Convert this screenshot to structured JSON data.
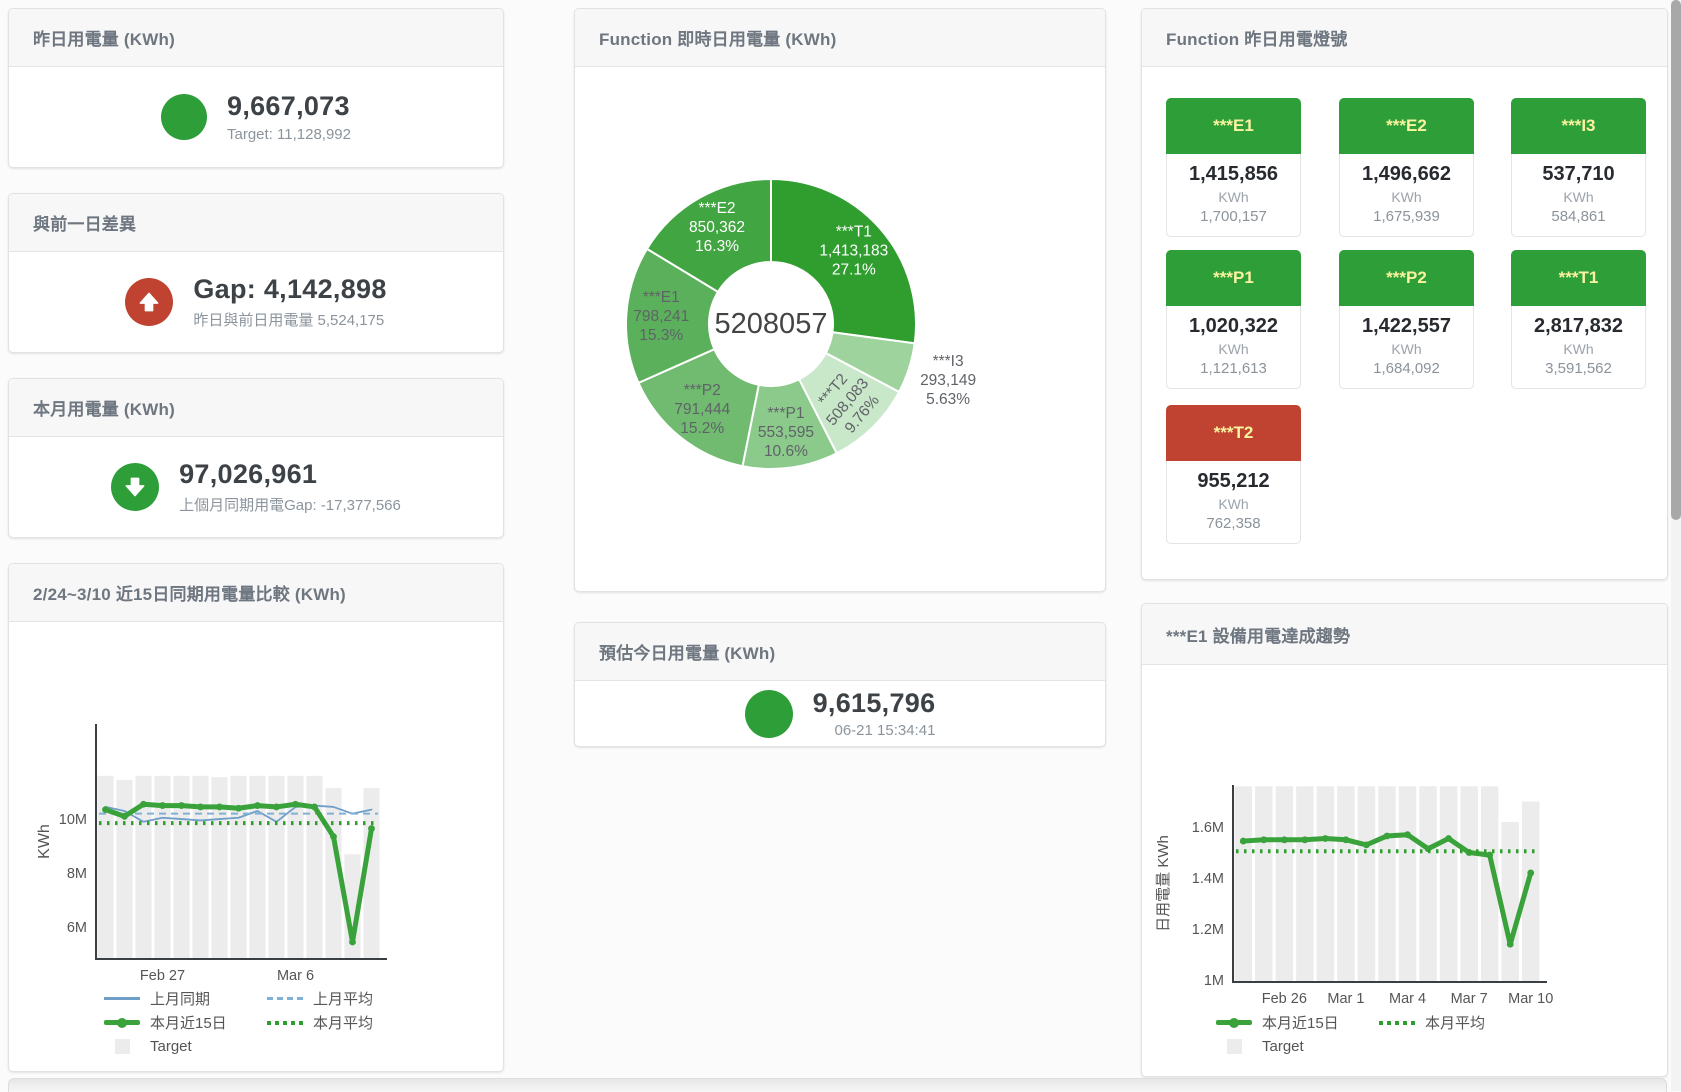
{
  "colors": {
    "green": "#2e9e38",
    "red": "#bf4330",
    "blue": "#6f9fc8",
    "blue_light": "#7fb0d6",
    "green_line": "#3aa23a",
    "green_avg": "#2f9e2f",
    "bar_gray": "#ececec"
  },
  "icons": {
    "yesterday_status": "circle",
    "gap_direction": "arrow-up-circle",
    "month_direction": "arrow-down-circle",
    "estimate_status": "circle"
  },
  "cards": {
    "yesterday": {
      "title": "昨日用電量 (KWh)",
      "value": "9,667,073",
      "sub": "Target: 11,128,992"
    },
    "gap": {
      "title": "與前一日差異",
      "value": "Gap: 4,142,898",
      "sub": "昨日與前日用電量 5,524,175"
    },
    "month": {
      "title": "本月用電量 (KWh)",
      "value": "97,026,961",
      "sub": "上個月同期用電Gap: -17,377,566"
    },
    "estimate": {
      "title": "預估今日用電量 (KWh)",
      "value": "9,615,796",
      "sub": "06-21 15:34:41"
    }
  },
  "lights": {
    "title": "Function 昨日用電燈號",
    "unit": "KWh",
    "tiles": [
      {
        "name": "***E1",
        "value": "1,415,856",
        "target": "1,700,157",
        "color": "#2e9e38"
      },
      {
        "name": "***E2",
        "value": "1,496,662",
        "target": "1,675,939",
        "color": "#2e9e38"
      },
      {
        "name": "***I3",
        "value": "537,710",
        "target": "584,861",
        "color": "#2e9e38"
      },
      {
        "name": "***P1",
        "value": "1,020,322",
        "target": "1,121,613",
        "color": "#2e9e38"
      },
      {
        "name": "***P2",
        "value": "1,422,557",
        "target": "1,684,092",
        "color": "#2e9e38"
      },
      {
        "name": "***T1",
        "value": "2,817,832",
        "target": "3,591,562",
        "color": "#2e9e38"
      },
      {
        "name": "***T2",
        "value": "955,212",
        "target": "762,358",
        "color": "#bf4330"
      }
    ]
  },
  "chart_data": [
    {
      "type": "pie",
      "title": "Function 即時日用電量 (KWh)",
      "center_total": "5208057",
      "slices": [
        {
          "name": "***T1",
          "value": 1413183,
          "value_label": "1,413,183",
          "pct_label": "27.1%",
          "color": "#2f9e2f",
          "label_color": "#ffffff"
        },
        {
          "name": "***I3",
          "value": 293149,
          "value_label": "293,149",
          "pct_label": "5.63%",
          "color": "#9ed39e",
          "label_color": "#5f6368",
          "outside": true
        },
        {
          "name": "***T2",
          "value": 508083,
          "value_label": "508,083",
          "pct_label": "9.76%",
          "color": "#c9e7c9",
          "label_color": "#5f6368",
          "rotate": -50
        },
        {
          "name": "***P1",
          "value": 553595,
          "value_label": "553,595",
          "pct_label": "10.6%",
          "color": "#8bca8b",
          "label_color": "#5f6368"
        },
        {
          "name": "***P2",
          "value": 791444,
          "value_label": "791,444",
          "pct_label": "15.2%",
          "color": "#70bb70",
          "label_color": "#5f6368"
        },
        {
          "name": "***E1",
          "value": 798241,
          "value_label": "798,241",
          "pct_label": "15.3%",
          "color": "#5bb05b",
          "label_color": "#5f6368"
        },
        {
          "name": "***E2",
          "value": 850362,
          "value_label": "850,362",
          "pct_label": "16.3%",
          "color": "#41a541",
          "label_color": "#ffffff"
        }
      ]
    },
    {
      "type": "line",
      "title": "2/24~3/10 近15日同期用電量比較 (KWh)",
      "ylabel": "KWh",
      "ylim": [
        4.8,
        13.5
      ],
      "yticks": [
        {
          "label": "10M",
          "value": 10
        },
        {
          "label": "8M",
          "value": 8
        },
        {
          "label": "6M",
          "value": 6
        }
      ],
      "xticks": [
        {
          "label": "Feb 27",
          "index": 3
        },
        {
          "label": "Mar 6",
          "index": 10
        }
      ],
      "x_range": "2/24 - 3/10 (15 days)",
      "target_bars": [
        11.6,
        11.45,
        11.6,
        11.6,
        11.6,
        11.6,
        11.55,
        11.6,
        11.6,
        11.6,
        11.6,
        11.6,
        11.15,
        8.7,
        11.15
      ],
      "series": [
        {
          "name": "上月同期",
          "style": "thin",
          "color": "#6f9fc8",
          "values": [
            10.45,
            10.3,
            9.9,
            10.05,
            10.0,
            9.95,
            10.0,
            10.05,
            10.3,
            9.9,
            10.45,
            10.5,
            10.45,
            10.2,
            10.35
          ]
        },
        {
          "name": "上月平均",
          "style": "dashed",
          "color": "#7fb0d6",
          "avg": 10.2
        },
        {
          "name": "本月近15日",
          "style": "thick",
          "color": "#3aa23a",
          "values": [
            10.35,
            10.1,
            10.55,
            10.5,
            10.5,
            10.45,
            10.45,
            10.4,
            10.5,
            10.45,
            10.55,
            10.45,
            9.35,
            5.45,
            9.65
          ]
        },
        {
          "name": "本月平均",
          "style": "dotted",
          "color": "#2f9e2f",
          "avg": 9.85
        },
        {
          "name": "Target",
          "style": "bar",
          "color": "#ececec"
        }
      ]
    },
    {
      "type": "line",
      "title": "***E1 設備用電達成趨勢",
      "ylabel": "日用電量 KWh",
      "ylim": [
        1.0,
        1.77
      ],
      "yticks": [
        {
          "label": "1.6M",
          "value": 1.6
        },
        {
          "label": "1.4M",
          "value": 1.4
        },
        {
          "label": "1.2M",
          "value": 1.2
        },
        {
          "label": "1M",
          "value": 1.0
        }
      ],
      "xticks": [
        {
          "label": "Feb 26",
          "index": 2
        },
        {
          "label": "Mar 1",
          "index": 5
        },
        {
          "label": "Mar 4",
          "index": 8
        },
        {
          "label": "Mar 7",
          "index": 11
        },
        {
          "label": "Mar 10",
          "index": 14
        }
      ],
      "x_range": "2/24 - 3/10 (15 days)",
      "target_bars": [
        1.76,
        1.76,
        1.76,
        1.76,
        1.76,
        1.76,
        1.76,
        1.76,
        1.76,
        1.76,
        1.76,
        1.76,
        1.76,
        1.62,
        1.7
      ],
      "series": [
        {
          "name": "本月近15日",
          "style": "thick",
          "color": "#3aa23a",
          "values": [
            1.545,
            1.55,
            1.55,
            1.55,
            1.555,
            1.55,
            1.53,
            1.565,
            1.57,
            1.515,
            1.555,
            1.5,
            1.49,
            1.14,
            1.42
          ]
        },
        {
          "name": "本月平均",
          "style": "dotted",
          "color": "#2f9e2f",
          "avg": 1.505
        },
        {
          "name": "Target",
          "style": "bar",
          "color": "#ececec"
        }
      ]
    }
  ]
}
